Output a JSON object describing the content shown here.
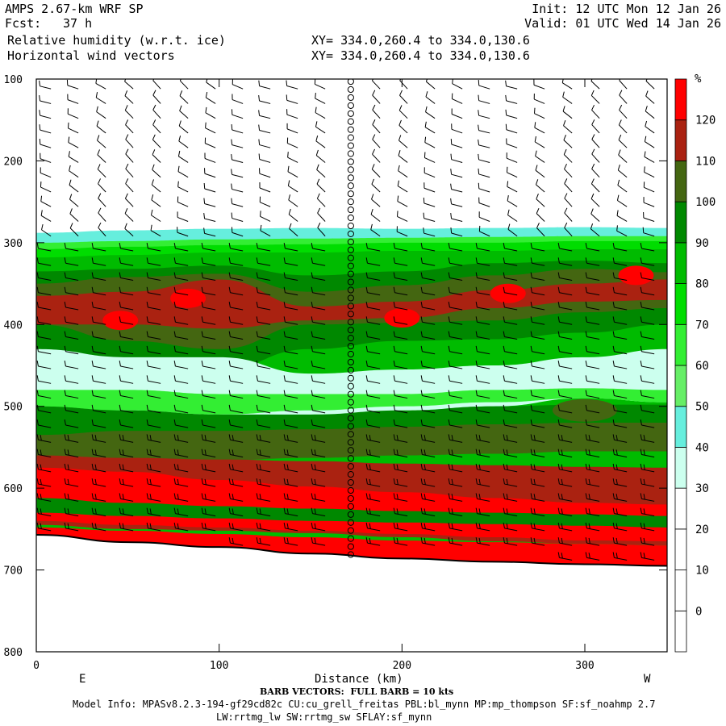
{
  "header": {
    "model": "AMPS 2.67-km WRF SP",
    "init": "Init: 12 UTC Mon 12 Jan 26",
    "fcst_label": "Fcst:",
    "fcst_value": "37 h",
    "valid": "Valid: 01 UTC Wed 14 Jan 26",
    "field1": "Relative humidity (w.r.t. ice)",
    "field1_xy": "XY= 334.0,260.4 to 334.0,130.6",
    "field2": "Horizontal wind vectors",
    "field2_xy": "XY= 334.0,260.4 to 334.0,130.6"
  },
  "footer": {
    "barb": "BARB VECTORS:  FULL BARB = 10 kts",
    "model_info": "Model Info: MPASv8.2.3-194-gf29cd82c CU:cu_grell_freitas PBL:bl_mynn MP:mp_thompson SF:sf_noahmp 2.7",
    "model_info2": "LW:rrtmg_lw SW:rrtmg_sw SFLAY:sf_mynn"
  },
  "chart_data": {
    "type": "heatmap",
    "title": "Relative humidity (w.r.t. ice)",
    "xlabel": "Distance (km)",
    "ylabel": "",
    "xlim": [
      0,
      345
    ],
    "ylim": [
      800,
      100
    ],
    "x_ticks": [
      0,
      100,
      200,
      300
    ],
    "y_ticks": [
      100,
      200,
      300,
      400,
      500,
      600,
      700,
      800
    ],
    "x_end_labels": {
      "left": "E",
      "right": "W"
    },
    "colorbar": {
      "unit": "%",
      "levels": [
        0,
        10,
        20,
        30,
        40,
        50,
        60,
        70,
        80,
        90,
        100,
        110,
        120
      ],
      "colors": [
        "#ffffff",
        "#ffffff",
        "#ffffff",
        "#ffffff",
        "#ccffee",
        "#66eedd",
        "#66ee66",
        "#33ee33",
        "#00dd00",
        "#00bb00",
        "#008800",
        "#446611",
        "#aa2211",
        "#ff0000"
      ]
    },
    "terrain_pressure": {
      "x": [
        0,
        50,
        100,
        150,
        200,
        250,
        300,
        345
      ],
      "p": [
        657,
        666,
        672,
        680,
        686,
        690,
        693,
        695
      ]
    },
    "marker_column_x": 172,
    "bands": [
      {
        "level": 40,
        "top": [
          288,
          285,
          283,
          282,
          283,
          282,
          281,
          282
        ],
        "bottom": [
          660,
          668,
          674,
          682,
          688,
          692,
          695,
          697
        ]
      },
      {
        "level": 60,
        "top": [
          300,
          298,
          296,
          295,
          294,
          293,
          292,
          292
        ],
        "bottom": [
          660,
          668,
          674,
          682,
          688,
          692,
          695,
          697
        ]
      },
      {
        "level": 70,
        "top": [
          308,
          305,
          303,
          302,
          300,
          300,
          298,
          298
        ],
        "bottom": [
          660,
          668,
          674,
          682,
          688,
          692,
          695,
          697
        ]
      },
      {
        "level": 80,
        "top": [
          318,
          315,
          312,
          312,
          310,
          310,
          308,
          308
        ],
        "bottom": [
          660,
          668,
          674,
          682,
          688,
          692,
          695,
          697
        ]
      },
      {
        "level": 90,
        "top": [
          335,
          332,
          328,
          340,
          335,
          325,
          322,
          325
        ],
        "bottom": [
          435,
          445,
          455,
          430,
          420,
          418,
          410,
          400
        ]
      },
      {
        "level": 100,
        "top": [
          350,
          342,
          338,
          360,
          352,
          340,
          332,
          336
        ],
        "bottom": [
          400,
          420,
          430,
          400,
          398,
          395,
          385,
          380
        ]
      },
      {
        "level": 110,
        "top": [
          365,
          360,
          345,
          378,
          372,
          358,
          350,
          345
        ],
        "bottom": [
          400,
          400,
          405,
          395,
          392,
          380,
          372,
          370
        ]
      },
      {
        "level": 30,
        "top": [
          430,
          440,
          440,
          460,
          455,
          450,
          440,
          430
        ],
        "bottom": [
          520,
          515,
          520,
          515,
          510,
          500,
          490,
          495
        ]
      },
      {
        "level": 60,
        "top": [
          480,
          480,
          485,
          485,
          485,
          480,
          478,
          480
        ],
        "bottom": [
          510,
          505,
          510,
          505,
          500,
          495,
          490,
          495
        ]
      },
      {
        "level": 90,
        "top": [
          500,
          505,
          510,
          510,
          505,
          500,
          498,
          498
        ],
        "bottom": [
          545,
          548,
          545,
          540,
          538,
          536,
          535,
          535
        ]
      },
      {
        "level": 100,
        "top": [
          535,
          530,
          530,
          528,
          525,
          522,
          520,
          520
        ],
        "bottom": [
          570,
          568,
          566,
          563,
          560,
          558,
          555,
          555
        ]
      },
      {
        "level": 110,
        "top": [
          560,
          563,
          565,
          567,
          570,
          572,
          574,
          575
        ],
        "bottom": [
          645,
          650,
          652,
          655,
          660,
          665,
          668,
          670
        ]
      },
      {
        "level": 120,
        "top": [
          575,
          580,
          590,
          598,
          605,
          612,
          618,
          620
        ],
        "bottom": [
          640,
          645,
          648,
          652,
          656,
          660,
          664,
          665
        ]
      },
      {
        "level": 90,
        "top": [
          612,
          618,
          622,
          625,
          628,
          630,
          632,
          634
        ],
        "bottom": [
          630,
          634,
          637,
          640,
          642,
          644,
          646,
          648
        ]
      },
      {
        "level": 120,
        "top": [
          648,
          652,
          656,
          660,
          664,
          666,
          668,
          670
        ],
        "bottom": [
          660,
          668,
          674,
          682,
          688,
          692,
          695,
          697
        ]
      }
    ],
    "rh_maxima": [
      {
        "x": 83,
        "p": 368,
        "level": 120
      },
      {
        "x": 46,
        "p": 395,
        "level": 120
      },
      {
        "x": 200,
        "p": 392,
        "level": 120
      },
      {
        "x": 258,
        "p": 362,
        "level": 120
      },
      {
        "x": 328,
        "p": 340,
        "level": 120
      },
      {
        "x": 300,
        "p": 505,
        "level": 100
      }
    ]
  }
}
